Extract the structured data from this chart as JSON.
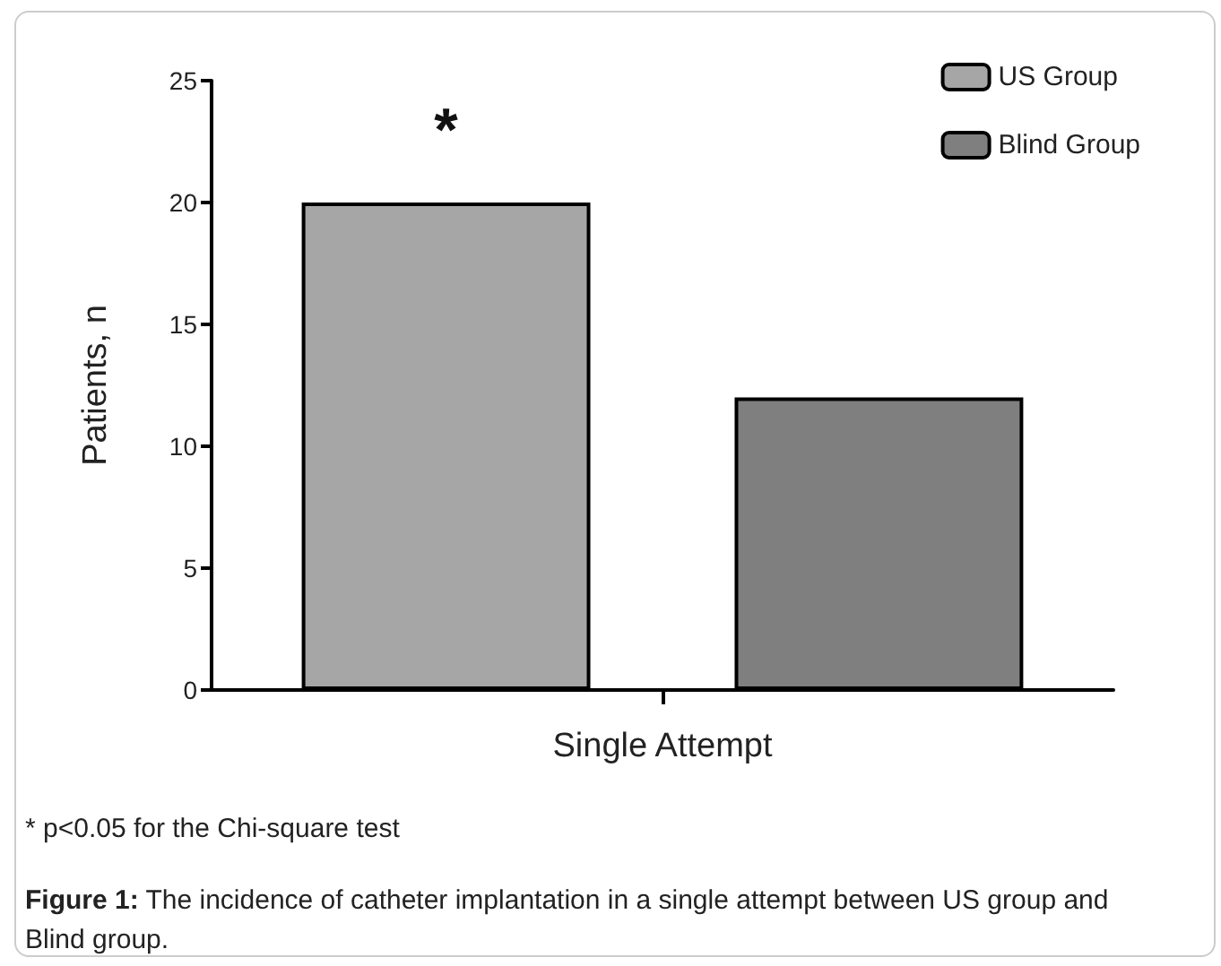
{
  "chart_data": {
    "type": "bar",
    "categories": [
      "Single Attempt"
    ],
    "ylabel": "Patients, n",
    "series": [
      {
        "name": "US Group",
        "color": "#a6a6a6",
        "values": [
          20
        ]
      },
      {
        "name": "Blind Group",
        "color": "#7f7f7f",
        "values": [
          12
        ]
      }
    ],
    "ylim": [
      0,
      25
    ],
    "yticks": [
      0,
      5,
      10,
      15,
      20,
      25
    ],
    "grid": false,
    "legend": "top right",
    "annotations": [
      "*",
      "* p<0.05 for the Chi-square test",
      "Figure 1: The incidence of catheter implantation in a single attempt between US group and Blind group."
    ]
  }
}
